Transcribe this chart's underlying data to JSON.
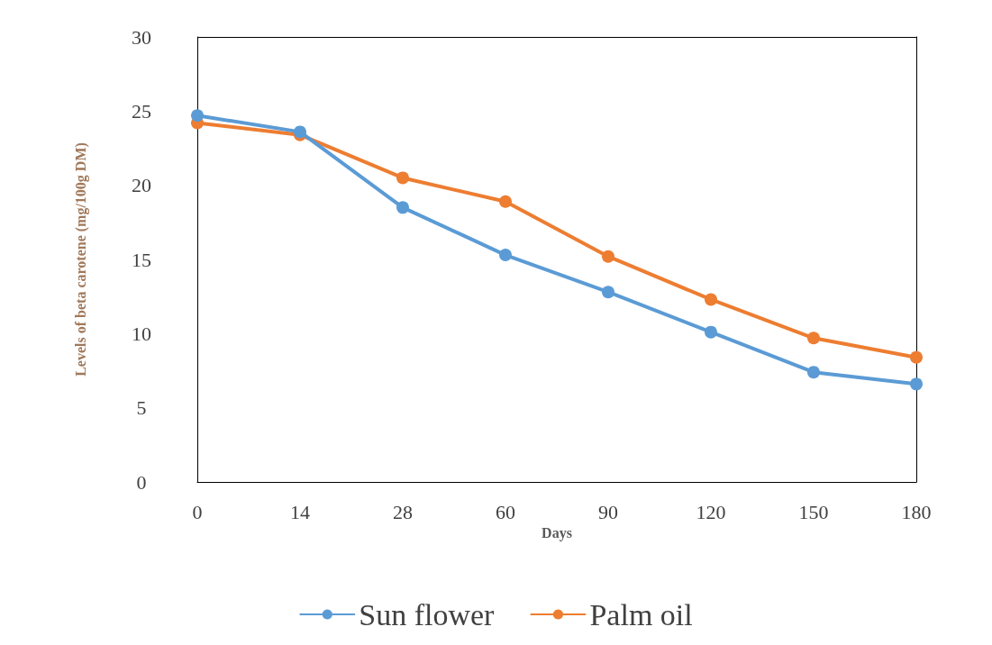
{
  "chart_data": {
    "type": "line",
    "xlabel": "Days",
    "ylabel": "Levels of beta carotene (mg/100g DM)",
    "categories": [
      "0",
      "14",
      "28",
      "60",
      "90",
      "120",
      "150",
      "180"
    ],
    "series": [
      {
        "name": "Sun flower",
        "color": "#5b9bd5",
        "values": [
          24.7,
          23.6,
          18.5,
          15.3,
          12.8,
          10.1,
          7.4,
          6.6
        ]
      },
      {
        "name": "Palm oil",
        "color": "#ed7d31",
        "values": [
          24.2,
          23.4,
          20.5,
          18.9,
          15.2,
          12.3,
          9.7,
          8.4
        ]
      }
    ],
    "ylim": [
      0,
      30
    ],
    "yticks": [
      0,
      5,
      10,
      15,
      20,
      25,
      30
    ],
    "grid": false,
    "legend": "bottom",
    "marker": "circle",
    "line_style": "solid"
  }
}
